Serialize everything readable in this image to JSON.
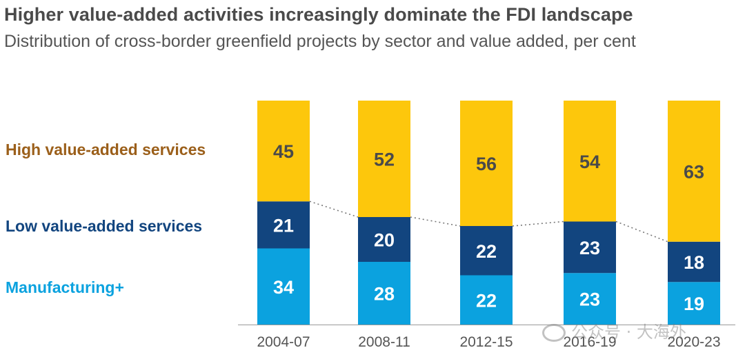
{
  "title": "Higher value-added activities increasingly dominate the FDI landscape",
  "subtitle": "Distribution of cross-border greenfield projects by sector and value added, per cent",
  "legend": {
    "high": "High value-added services",
    "low": "Low value-added services",
    "manufacturing": "Manufacturing+"
  },
  "colors": {
    "high": "#FDC70C",
    "low": "#12457F",
    "manufacturing": "#0BA2DF",
    "high_label": "#9B5F1A",
    "low_label": "#12457F",
    "manufacturing_label": "#0BA2DF",
    "value_text_on_yellow": "#4a4a4a",
    "value_text_on_blue": "#ffffff"
  },
  "watermark": "公众号 · 大海外",
  "chart_data": {
    "type": "bar",
    "stacked": true,
    "categories": [
      "2004-07",
      "2008-11",
      "2012-15",
      "2016-19",
      "2020-23"
    ],
    "series": [
      {
        "name": "Manufacturing+",
        "values": [
          34,
          28,
          22,
          23,
          19
        ]
      },
      {
        "name": "Low value-added services",
        "values": [
          21,
          20,
          22,
          23,
          18
        ]
      },
      {
        "name": "High value-added services",
        "values": [
          45,
          52,
          56,
          54,
          63
        ]
      }
    ],
    "ylim": [
      0,
      100
    ],
    "grid": false,
    "connector": "dotted line linking top of low value-added services segments"
  }
}
